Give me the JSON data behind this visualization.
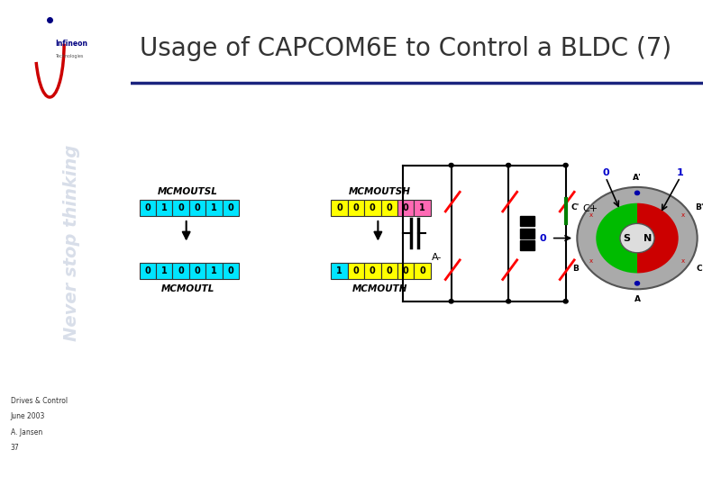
{
  "title": "Usage of CAPCOM6E to Control a BLDC (7)",
  "title_color": "#333333",
  "title_fontsize": 20,
  "sidebar_color": "#b8c4d8",
  "sidebar_text": "Never stop thinking",
  "sidebar_text_color": "#c8d0e0",
  "bg_color": "#ffffff",
  "header_line_color": "#1a237e",
  "footer_texts": [
    "Drives & Control",
    "June 2003",
    "A. Jansen",
    "37"
  ],
  "footer_color": "#333333",
  "mcmoutsl_label": "MCMOUTSL",
  "mcmoutsh_label": "MCMOUTSH",
  "mcmoutl_label": "MCMOUTL",
  "mcmouth_label": "MCMOUTH",
  "sl_top_bits": [
    "0",
    "1",
    "0",
    "0",
    "1",
    "0"
  ],
  "sh_top_bits": [
    "0",
    "0",
    "0",
    "0",
    "0",
    "1"
  ],
  "sl_bot_bits": [
    "0",
    "1",
    "0",
    "0",
    "1",
    "0"
  ],
  "sh_bot_bits": [
    "1",
    "0",
    "0",
    "0",
    "0",
    "0"
  ],
  "sl_top_colors": [
    "#00e5ff",
    "#00e5ff",
    "#00e5ff",
    "#00e5ff",
    "#00e5ff",
    "#00e5ff"
  ],
  "sh_top_colors": [
    "#ffff00",
    "#ffff00",
    "#ffff00",
    "#ffff00",
    "#ff69b4",
    "#ff69b4"
  ],
  "sl_bot_colors": [
    "#00e5ff",
    "#00e5ff",
    "#00e5ff",
    "#00e5ff",
    "#00e5ff",
    "#00e5ff"
  ],
  "sh_bot_colors": [
    "#00e5ff",
    "#ffff00",
    "#ffff00",
    "#ffff00",
    "#ffff00",
    "#ffff00"
  ]
}
